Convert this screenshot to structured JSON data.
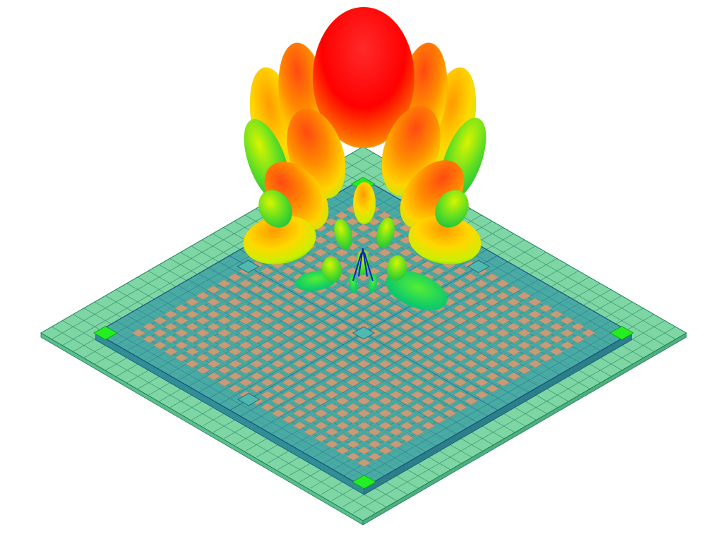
{
  "scene": {
    "description_name": "antenna-array-radiation-pattern",
    "colors": {
      "background": "#ffffff",
      "substrate_fill": "#7ed6a4",
      "substrate_edge": "#1e7d5a",
      "panel_fill": "#3fa3a3",
      "panel_edge": "#1a4f7a",
      "patch_fill": "#c89a78",
      "corner_marker": "#22ee22",
      "lobe_peak": "#ff0000",
      "lobe_high": "#ff8800",
      "lobe_mid": "#ffee00",
      "lobe_low": "#33dd33",
      "lobe_null": "#0022cc"
    },
    "array": {
      "patch_rows": 22,
      "patch_cols": 22
    }
  }
}
